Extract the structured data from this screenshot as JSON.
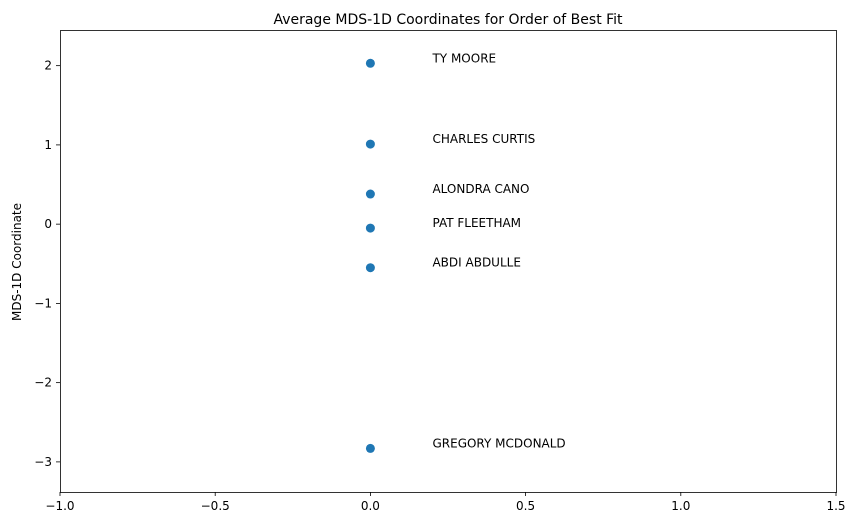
{
  "chart_data": {
    "type": "scatter",
    "title": "Average MDS-1D Coordinates for Order of Best Fit",
    "xlabel": "",
    "ylabel": "MDS-1D Coordinate",
    "xlim": [
      -1.0,
      1.5
    ],
    "ylim": [
      -3.38,
      2.45
    ],
    "xticks": [
      -1.0,
      -0.5,
      0.0,
      0.5,
      1.0,
      1.5
    ],
    "xtick_labels": [
      "−1.0",
      "−0.5",
      "0.0",
      "0.5",
      "1.0",
      "1.5"
    ],
    "yticks": [
      2,
      1,
      0,
      -1,
      -2,
      -3
    ],
    "ytick_labels": [
      "2",
      "1",
      "0",
      "−1",
      "−2",
      "−3"
    ],
    "grid": false,
    "marker_color": "#1f77b4",
    "points": [
      {
        "label": "TY MOORE",
        "x": 0.0,
        "y": 2.03
      },
      {
        "label": "CHARLES CURTIS",
        "x": 0.0,
        "y": 1.01
      },
      {
        "label": "ALONDRA CANO",
        "x": 0.0,
        "y": 0.38
      },
      {
        "label": "PAT FLEETHAM",
        "x": 0.0,
        "y": -0.05
      },
      {
        "label": "ABDI ABDULLE",
        "x": 0.0,
        "y": -0.55
      },
      {
        "label": "GREGORY MCDONALD",
        "x": 0.0,
        "y": -2.83
      }
    ]
  }
}
